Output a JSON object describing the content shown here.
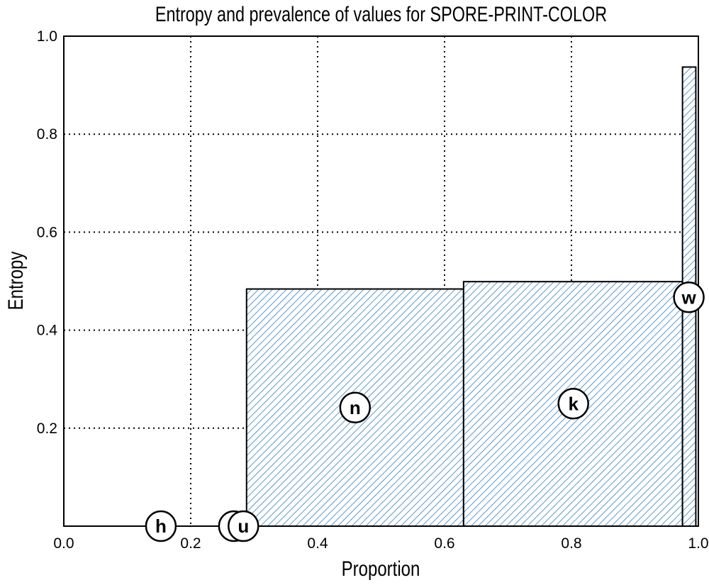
{
  "chart_data": {
    "type": "bar",
    "title": "Entropy and prevalence of values for SPORE-PRINT-COLOR",
    "xlabel": "Proportion",
    "ylabel": "Entropy",
    "xlim": [
      0.0,
      1.0
    ],
    "ylim": [
      0.0,
      1.0
    ],
    "xticks": [
      "0.0",
      "0.2",
      "0.4",
      "0.6",
      "0.8",
      "1.0"
    ],
    "yticks": [
      "0.2",
      "0.4",
      "0.6",
      "0.8",
      "1.0"
    ],
    "grid": true,
    "grid_style": "dotted",
    "bar_color": "#2f7fc1",
    "bars": [
      {
        "label": "h",
        "x_start": 0.0,
        "width": 0.281,
        "entropy": 0.0
      },
      {
        "label": "",
        "x_start": 0.281,
        "width": 0.008,
        "entropy": 0.0
      },
      {
        "label": "u",
        "x_start": 0.289,
        "width": 0.006,
        "entropy": 0.0
      },
      {
        "label": "n",
        "x_start": 0.288,
        "width": 0.342,
        "entropy": 0.484
      },
      {
        "label": "k",
        "x_start": 0.63,
        "width": 0.345,
        "entropy": 0.499
      },
      {
        "label": "w",
        "x_start": 0.975,
        "width": 0.021,
        "entropy": 0.937
      }
    ],
    "markers": [
      {
        "label": "h",
        "x": 0.153,
        "y": 0.0
      },
      {
        "label": "",
        "x": 0.268,
        "y": 0.0
      },
      {
        "label": "u",
        "x": 0.283,
        "y": 0.0
      },
      {
        "label": "n",
        "x": 0.459,
        "y": 0.242
      },
      {
        "label": "k",
        "x": 0.803,
        "y": 0.25
      },
      {
        "label": "w",
        "x": 0.985,
        "y": 0.467
      }
    ]
  }
}
